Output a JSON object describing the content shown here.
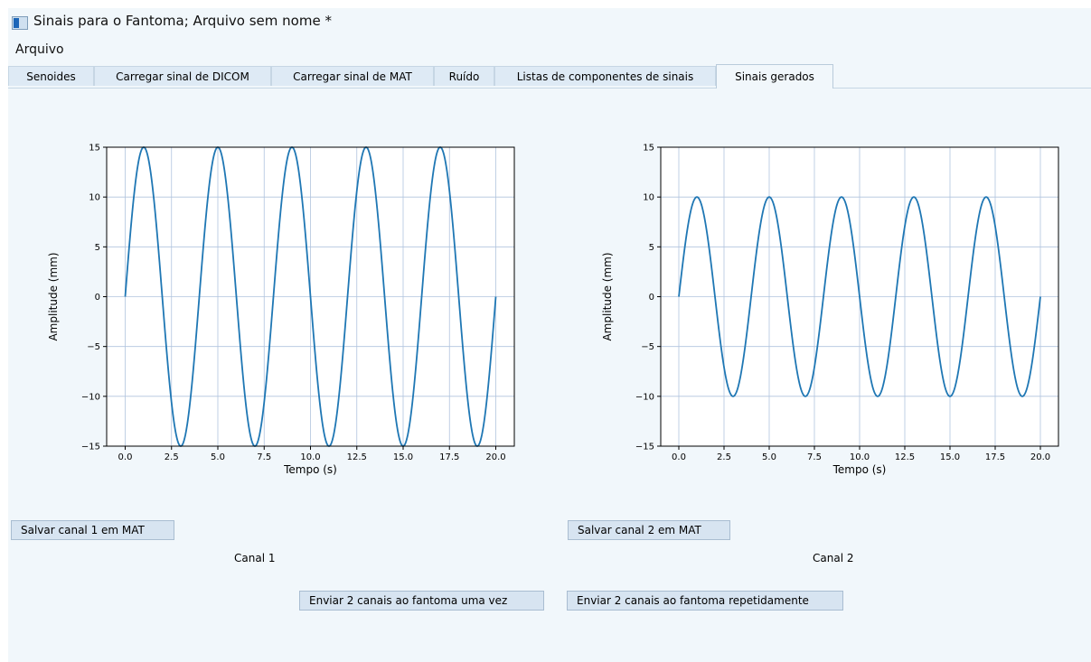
{
  "window": {
    "title": "Sinais para o Fantoma; Arquivo sem nome *"
  },
  "menu": {
    "file": "Arquivo"
  },
  "tabs": [
    {
      "label": "Senoides",
      "active": false
    },
    {
      "label": "Carregar sinal de DICOM",
      "active": false
    },
    {
      "label": "Carregar sinal de MAT",
      "active": false
    },
    {
      "label": "Ruído",
      "active": false
    },
    {
      "label": "Listas de componentes de sinais",
      "active": false
    },
    {
      "label": "Sinais gerados",
      "active": true
    }
  ],
  "buttons": {
    "save_ch1": "Salvar canal 1 em MAT",
    "save_ch2": "Salvar canal 2 em MAT",
    "send_once": "Enviar 2 canais ao fantoma uma vez",
    "send_repeat": "Enviar 2 canais ao fantoma repetidamente"
  },
  "labels": {
    "channel1": "Canal 1",
    "channel2": "Canal 2"
  },
  "colors": {
    "line": "#1f77b4",
    "grid": "#b0c4de",
    "accent_tab": "#f1f7fb"
  },
  "chart_data": [
    {
      "type": "line",
      "title": "",
      "xlabel": "Tempo (s)",
      "ylabel": "Amplitude (mm)",
      "xlim": [
        -1,
        21
      ],
      "ylim": [
        -15,
        15
      ],
      "xticks": [
        0.0,
        2.5,
        5.0,
        7.5,
        10.0,
        12.5,
        15.0,
        17.5,
        20.0
      ],
      "xtick_labels": [
        "0.0",
        "2.5",
        "5.0",
        "7.5",
        "10.0",
        "12.5",
        "15.0",
        "17.5",
        "20.0"
      ],
      "yticks": [
        -15,
        -10,
        -5,
        0,
        5,
        10,
        15
      ],
      "ytick_labels": [
        "−15",
        "−10",
        "−5",
        "0",
        "5",
        "10",
        "15"
      ],
      "grid": true,
      "series": [
        {
          "function": "sine",
          "amplitude": 15,
          "frequency_hz": 0.25,
          "x_start": 0,
          "x_end": 20
        }
      ]
    },
    {
      "type": "line",
      "title": "",
      "xlabel": "Tempo (s)",
      "ylabel": "Amplitude (mm)",
      "xlim": [
        -1,
        21
      ],
      "ylim": [
        -15,
        15
      ],
      "xticks": [
        0.0,
        2.5,
        5.0,
        7.5,
        10.0,
        12.5,
        15.0,
        17.5,
        20.0
      ],
      "xtick_labels": [
        "0.0",
        "2.5",
        "5.0",
        "7.5",
        "10.0",
        "12.5",
        "15.0",
        "17.5",
        "20.0"
      ],
      "yticks": [
        -15,
        -10,
        -5,
        0,
        5,
        10,
        15
      ],
      "ytick_labels": [
        "−15",
        "−10",
        "−5",
        "0",
        "5",
        "10",
        "15"
      ],
      "grid": true,
      "series": [
        {
          "function": "sine",
          "amplitude": 10,
          "frequency_hz": 0.25,
          "x_start": 0,
          "x_end": 20
        }
      ]
    }
  ]
}
